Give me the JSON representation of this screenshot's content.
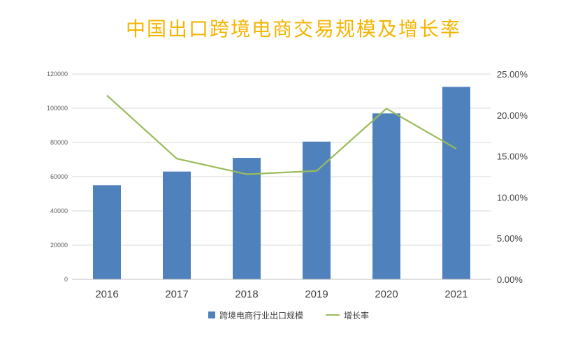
{
  "colors": {
    "title": "#F5B400",
    "bar": "#4F81BD",
    "line": "#9BBB59",
    "grid": "#D9D9D9",
    "axis": "#BFBFBF"
  },
  "chart_data": {
    "type": "bar",
    "title": "中国出口跨境电商交易规模及增长率",
    "categories": [
      "2016",
      "2017",
      "2018",
      "2019",
      "2020",
      "2021"
    ],
    "series": [
      {
        "name": "跨境电商行业出口规模",
        "type": "bar",
        "axis": "left",
        "values": [
          55000,
          63000,
          71000,
          80500,
          97000,
          112500
        ]
      },
      {
        "name": "增长率",
        "type": "line",
        "axis": "right",
        "values": [
          22.4,
          14.7,
          12.8,
          13.2,
          20.8,
          15.9
        ]
      }
    ],
    "ylim_left": [
      0,
      120000
    ],
    "yticks_left": [
      "0",
      "20000",
      "40000",
      "60000",
      "80000",
      "100000",
      "120000"
    ],
    "ylim_right": [
      0,
      25
    ],
    "yticks_right": [
      "0.00%",
      "5.00%",
      "10.00%",
      "15.00%",
      "20.00%",
      "25.00%"
    ],
    "grid": true,
    "legend_position": "bottom"
  }
}
